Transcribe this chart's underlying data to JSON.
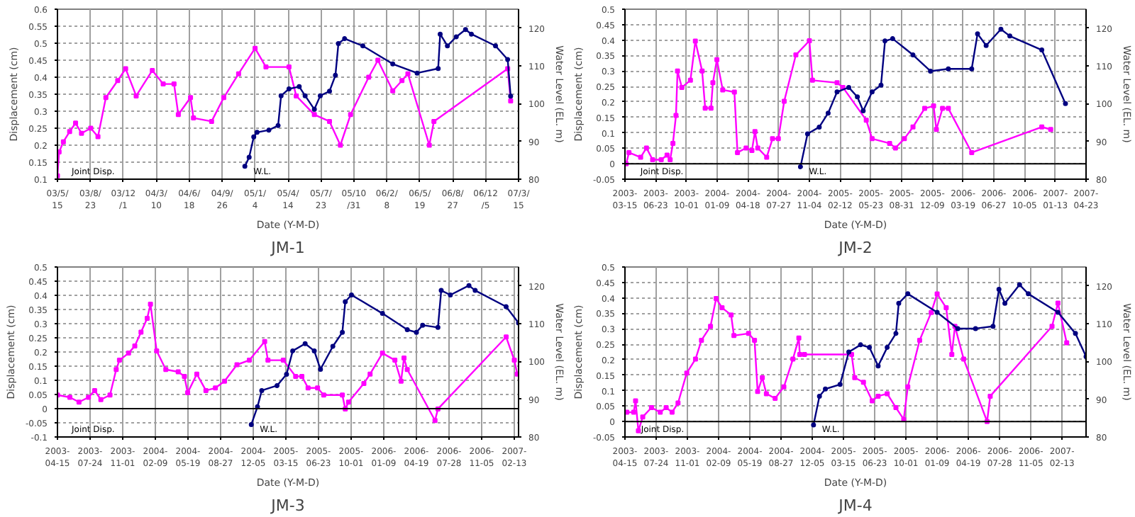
{
  "chart_data": [
    {
      "type": "line",
      "title": "JM-1",
      "xlabel": "Date (Y-M-D)",
      "ylabel": "Displacement (cm)",
      "y2label": "Water Level (EL. m)",
      "grid": true,
      "xlim": [
        "2003-05-15",
        "2007-03-15"
      ],
      "xticks": [
        {
          "value": "2003-05-15",
          "label": "03/5/\n15"
        },
        {
          "value": "2003-08-23",
          "label": "03/8/\n23"
        },
        {
          "value": "2003-12-01",
          "label": "03/12\n/1"
        },
        {
          "value": "2004-03-10",
          "label": "04/3/\n10"
        },
        {
          "value": "2004-06-18",
          "label": "04/6/\n18"
        },
        {
          "value": "2004-09-26",
          "label": "04/9/\n26"
        },
        {
          "value": "2005-01-04",
          "label": "05/1/\n4"
        },
        {
          "value": "2005-04-14",
          "label": "05/4/\n14"
        },
        {
          "value": "2005-07-23",
          "label": "05/7/\n23"
        },
        {
          "value": "2005-10-31",
          "label": "05/10\n/31"
        },
        {
          "value": "2006-02-08",
          "label": "06/2/\n8"
        },
        {
          "value": "2006-05-19",
          "label": "06/5/\n19"
        },
        {
          "value": "2006-08-27",
          "label": "06/8/\n27"
        },
        {
          "value": "2006-12-05",
          "label": "06/12\n/5"
        },
        {
          "value": "2007-03-15",
          "label": "07/3/\n15"
        }
      ],
      "ylim": [
        0.1,
        0.6
      ],
      "yticks": [
        0.1,
        0.15,
        0.2,
        0.25,
        0.3,
        0.35,
        0.4,
        0.45,
        0.5,
        0.55,
        0.6
      ],
      "y2lim": [
        80,
        125
      ],
      "y2ticks": [
        80,
        90,
        100,
        110,
        120
      ],
      "series": [
        {
          "name": "Joint Disp.",
          "color": "#ff00ff",
          "marker": "square",
          "x": [
            "2003-05-15",
            "2003-05-20",
            "2003-06-02",
            "2003-06-21",
            "2003-07-09",
            "2003-07-27",
            "2003-08-24",
            "2003-09-15",
            "2003-10-09",
            "2003-11-14",
            "2003-12-08",
            "2004-01-09",
            "2004-02-27",
            "2004-03-31",
            "2004-05-03",
            "2004-05-16",
            "2004-06-22",
            "2004-07-01",
            "2004-08-25",
            "2004-10-01",
            "2004-11-15",
            "2005-01-04",
            "2005-02-06",
            "2005-04-17",
            "2005-05-09",
            "2005-07-03",
            "2005-08-18",
            "2005-09-20",
            "2005-10-21",
            "2005-12-15",
            "2006-01-12",
            "2006-02-26",
            "2006-03-26",
            "2006-04-13",
            "2006-06-17",
            "2006-07-01",
            "2007-02-10",
            "2007-02-19"
          ],
          "values": [
            0.11,
            0.18,
            0.21,
            0.24,
            0.265,
            0.235,
            0.25,
            0.225,
            0.34,
            0.39,
            0.425,
            0.345,
            0.42,
            0.38,
            0.38,
            0.29,
            0.34,
            0.28,
            0.27,
            0.34,
            0.41,
            0.485,
            0.43,
            0.43,
            0.345,
            0.29,
            0.27,
            0.2,
            0.29,
            0.4,
            0.45,
            0.36,
            0.39,
            0.41,
            0.2,
            0.27,
            0.425,
            0.33
          ]
        },
        {
          "name": "W.L.",
          "color": "#000080",
          "marker": "circle",
          "axis": "y2",
          "x": [
            "2004-12-04",
            "2004-12-17",
            "2004-12-31",
            "2005-01-10",
            "2005-02-15",
            "2005-03-15",
            "2005-03-24",
            "2005-04-17",
            "2005-05-18",
            "2005-06-05",
            "2005-07-03",
            "2005-07-21",
            "2005-08-18",
            "2005-09-05",
            "2005-09-14",
            "2005-10-03",
            "2005-11-27",
            "2006-02-26",
            "2006-05-11",
            "2006-07-14",
            "2006-07-20",
            "2006-08-11",
            "2006-09-07",
            "2006-10-05",
            "2006-10-23",
            "2007-01-04",
            "2007-02-10",
            "2007-02-19"
          ],
          "values": [
            83.4,
            85.8,
            91.2,
            92.4,
            93,
            94.2,
            102.1,
            103.9,
            104.5,
            102.1,
            98.5,
            102.1,
            103.3,
            107.5,
            115.9,
            117.2,
            115.3,
            110.5,
            108.1,
            109.3,
            118.4,
            115.3,
            117.7,
            119.6,
            118.4,
            115.3,
            111.7,
            102
          ]
        }
      ]
    },
    {
      "type": "line",
      "title": "JM-2",
      "xlabel": "Date (Y-M-D)",
      "ylabel": "Displacement (cm)",
      "y2label": "Water Level (EL. m)",
      "grid": true,
      "xlim": [
        "2003-03-15",
        "2007-04-23"
      ],
      "xticks": [
        {
          "value": "2003-03-15",
          "label": "2003-\n03-15"
        },
        {
          "value": "2003-06-23",
          "label": "2003-\n06-23"
        },
        {
          "value": "2003-10-01",
          "label": "2003-\n10-01"
        },
        {
          "value": "2004-01-09",
          "label": "2004-\n01-09"
        },
        {
          "value": "2004-04-18",
          "label": "2004-\n04-18"
        },
        {
          "value": "2004-07-27",
          "label": "2004-\n07-27"
        },
        {
          "value": "2004-11-04",
          "label": "2004-\n11-04"
        },
        {
          "value": "2005-02-12",
          "label": "2005-\n02-12"
        },
        {
          "value": "2005-05-23",
          "label": "2005-\n05-23"
        },
        {
          "value": "2005-08-31",
          "label": "2005-\n08-31"
        },
        {
          "value": "2005-12-09",
          "label": "2005-\n12-09"
        },
        {
          "value": "2006-03-19",
          "label": "2006-\n03-19"
        },
        {
          "value": "2006-06-27",
          "label": "2006-\n06-27"
        },
        {
          "value": "2006-10-05",
          "label": "2006-\n10-05"
        },
        {
          "value": "2007-01-13",
          "label": "2007-\n01-13"
        },
        {
          "value": "2007-04-23",
          "label": "2007-\n04-23"
        }
      ],
      "ylim": [
        -0.05,
        0.5
      ],
      "yticks": [
        -0.05,
        0,
        0.05,
        0.1,
        0.15,
        0.2,
        0.25,
        0.3,
        0.35,
        0.4,
        0.45,
        0.5
      ],
      "y2lim": [
        80,
        125
      ],
      "y2ticks": [
        80,
        90,
        100,
        110,
        120
      ],
      "ref_lines": [
        {
          "axis": "y",
          "value": 0,
          "color": "#000000"
        }
      ],
      "series": [
        {
          "name": "Joint Disp.",
          "color": "#ff00ff",
          "marker": "square",
          "x": [
            "2003-03-19",
            "2003-03-28",
            "2003-05-05",
            "2003-05-24",
            "2003-06-13",
            "2003-07-11",
            "2003-07-30",
            "2003-08-09",
            "2003-08-18",
            "2003-08-28",
            "2003-09-02",
            "2003-09-16",
            "2003-10-14",
            "2003-10-30",
            "2003-11-21",
            "2003-12-01",
            "2003-12-20",
            "2003-12-26",
            "2004-01-08",
            "2004-01-27",
            "2004-03-05",
            "2004-03-15",
            "2004-04-12",
            "2004-05-01",
            "2004-05-11",
            "2004-05-20",
            "2004-06-18",
            "2004-07-07",
            "2004-07-26",
            "2004-08-14",
            "2004-09-21",
            "2004-11-04",
            "2004-11-14",
            "2005-02-02",
            "2005-02-21",
            "2005-05-08",
            "2005-05-27",
            "2005-07-23",
            "2005-08-11",
            "2005-09-09",
            "2005-10-07",
            "2005-11-14",
            "2005-12-13",
            "2005-12-22",
            "2006-01-11",
            "2006-01-30",
            "2006-04-16",
            "2006-11-30",
            "2006-12-29"
          ],
          "values": [
            0.0,
            0.036,
            0.021,
            0.051,
            0.013,
            0.013,
            0.028,
            0.013,
            0.066,
            0.156,
            0.3,
            0.247,
            0.27,
            0.397,
            0.3,
            0.18,
            0.18,
            0.262,
            0.337,
            0.239,
            0.232,
            0.036,
            0.051,
            0.043,
            0.104,
            0.051,
            0.021,
            0.081,
            0.081,
            0.202,
            0.352,
            0.398,
            0.27,
            0.262,
            0.247,
            0.141,
            0.081,
            0.066,
            0.051,
            0.081,
            0.119,
            0.179,
            0.187,
            0.111,
            0.179,
            0.179,
            0.036,
            0.119,
            0.111
          ]
        },
        {
          "name": "W.L.",
          "color": "#000080",
          "marker": "circle",
          "axis": "y2",
          "x": [
            "2004-10-06",
            "2004-10-29",
            "2004-12-06",
            "2005-01-04",
            "2005-02-02",
            "2005-03-12",
            "2005-04-09",
            "2005-04-28",
            "2005-05-27",
            "2005-06-25",
            "2005-07-08",
            "2005-08-02",
            "2005-10-07",
            "2005-12-03",
            "2006-01-30",
            "2006-04-16",
            "2006-05-05",
            "2006-06-02",
            "2006-07-20",
            "2006-08-18",
            "2006-11-30",
            "2007-02-15"
          ],
          "values": [
            83.3,
            92,
            93.8,
            97.5,
            103.1,
            104.3,
            101.8,
            98.1,
            103.1,
            104.9,
            116.6,
            117.2,
            112.9,
            108.6,
            109.2,
            109.2,
            118.5,
            115.4,
            119.7,
            117.9,
            114.2,
            100
          ]
        }
      ]
    },
    {
      "type": "line",
      "title": "JM-3",
      "xlabel": "Date (Y-M-D)",
      "ylabel": "Displacement (cm)",
      "y2label": "Water Level (EL. m)",
      "grid": true,
      "xlim": [
        "2003-04-15",
        "2007-02-26"
      ],
      "xticks": [
        {
          "value": "2003-04-15",
          "label": "2003-\n04-15"
        },
        {
          "value": "2003-07-24",
          "label": "2003-\n07-24"
        },
        {
          "value": "2003-11-01",
          "label": "2003-\n11-01"
        },
        {
          "value": "2004-02-09",
          "label": "2004-\n02-09"
        },
        {
          "value": "2004-05-19",
          "label": "2004-\n05-19"
        },
        {
          "value": "2004-08-27",
          "label": "2004-\n08-27"
        },
        {
          "value": "2004-12-05",
          "label": "2004-\n12-05"
        },
        {
          "value": "2005-03-15",
          "label": "2005-\n03-15"
        },
        {
          "value": "2005-06-23",
          "label": "2005-\n06-23"
        },
        {
          "value": "2005-10-01",
          "label": "2005-\n10-01"
        },
        {
          "value": "2006-01-09",
          "label": "2006-\n01-09"
        },
        {
          "value": "2006-04-19",
          "label": "2006-\n04-19"
        },
        {
          "value": "2006-07-28",
          "label": "2006-\n07-28"
        },
        {
          "value": "2006-11-05",
          "label": "2006-\n11-05"
        },
        {
          "value": "2007-02-13",
          "label": "2007-\n02-13"
        }
      ],
      "ylim": [
        -0.1,
        0.5
      ],
      "yticks": [
        -0.1,
        -0.05,
        0,
        0.05,
        0.1,
        0.15,
        0.2,
        0.25,
        0.3,
        0.35,
        0.4,
        0.45,
        0.5
      ],
      "y2lim": [
        80,
        125
      ],
      "y2ticks": [
        80,
        90,
        100,
        110,
        120
      ],
      "ref_lines": [
        {
          "axis": "y",
          "value": 0,
          "color": "#000000"
        }
      ],
      "series": [
        {
          "name": "Joint Disp.",
          "color": "#ff00ff",
          "marker": "square",
          "x": [
            "2003-04-15",
            "2003-05-23",
            "2003-06-20",
            "2003-07-19",
            "2003-08-07",
            "2003-08-26",
            "2003-09-23",
            "2003-10-12",
            "2003-10-22",
            "2003-11-19",
            "2003-12-08",
            "2003-12-27",
            "2004-01-15",
            "2004-01-25",
            "2004-02-13",
            "2004-03-12",
            "2004-04-19",
            "2004-05-08",
            "2004-05-18",
            "2004-06-15",
            "2004-07-13",
            "2004-08-11",
            "2004-09-08",
            "2004-10-16",
            "2004-11-23",
            "2005-01-09",
            "2005-01-19",
            "2005-03-07",
            "2005-04-14",
            "2005-05-03",
            "2005-05-22",
            "2005-06-20",
            "2005-07-09",
            "2005-09-04",
            "2005-09-13",
            "2005-09-23",
            "2005-11-09",
            "2005-11-28",
            "2006-01-05",
            "2006-02-12",
            "2006-03-03",
            "2006-03-12",
            "2006-03-22",
            "2006-06-15",
            "2006-06-24",
            "2007-01-19",
            "2007-02-13",
            "2007-02-22"
          ],
          "values": [
            0.048,
            0.04,
            0.023,
            0.04,
            0.064,
            0.032,
            0.048,
            0.138,
            0.171,
            0.196,
            0.221,
            0.27,
            0.319,
            0.369,
            0.204,
            0.138,
            0.13,
            0.114,
            0.056,
            0.122,
            0.064,
            0.073,
            0.097,
            0.155,
            0.171,
            0.237,
            0.171,
            0.171,
            0.114,
            0.114,
            0.073,
            0.073,
            0.048,
            0.048,
            -0.001,
            0.023,
            0.089,
            0.122,
            0.196,
            0.171,
            0.097,
            0.179,
            0.138,
            -0.042,
            -0.001,
            0.253,
            0.171,
            0.122
          ]
        },
        {
          "name": "W.L.",
          "color": "#000080",
          "marker": "circle",
          "axis": "y2",
          "x": [
            "2004-11-29",
            "2004-12-18",
            "2004-12-31",
            "2005-02-16",
            "2005-03-17",
            "2005-04-05",
            "2005-05-13",
            "2005-06-10",
            "2005-06-29",
            "2005-08-06",
            "2005-09-04",
            "2005-09-13",
            "2005-10-02",
            "2006-01-05",
            "2006-03-22",
            "2006-04-19",
            "2006-05-08",
            "2006-06-24",
            "2006-07-04",
            "2006-08-01",
            "2006-09-27",
            "2006-10-16",
            "2007-01-19",
            "2007-02-26"
          ],
          "values": [
            83.3,
            88,
            92.3,
            93.6,
            96.6,
            102.8,
            104.7,
            102.8,
            97.9,
            104,
            107.7,
            115.8,
            117.6,
            112.7,
            108.4,
            107.7,
            109.6,
            109,
            118.8,
            117.6,
            120.1,
            118.8,
            114.5,
            110.2
          ]
        }
      ]
    },
    {
      "type": "line",
      "title": "JM-4",
      "xlabel": "Date (Y-M-D)",
      "ylabel": "Displacement (cm)",
      "y2label": "Water Level (EL. m)",
      "grid": true,
      "xlim": [
        "2003-04-15",
        "2007-05-01"
      ],
      "xticks": [
        {
          "value": "2003-04-15",
          "label": "2003-\n04-15"
        },
        {
          "value": "2003-07-24",
          "label": "2003-\n07-24"
        },
        {
          "value": "2003-11-01",
          "label": "2003-\n11-01"
        },
        {
          "value": "2004-02-09",
          "label": "2004-\n02-09"
        },
        {
          "value": "2004-05-19",
          "label": "2004-\n05-19"
        },
        {
          "value": "2004-08-27",
          "label": "2004-\n08-27"
        },
        {
          "value": "2004-12-05",
          "label": "2004-\n12-05"
        },
        {
          "value": "2005-03-15",
          "label": "2005-\n03-15"
        },
        {
          "value": "2005-06-23",
          "label": "2005-\n06-23"
        },
        {
          "value": "2005-10-01",
          "label": "2005-\n10-01"
        },
        {
          "value": "2006-01-09",
          "label": "2006-\n01-09"
        },
        {
          "value": "2006-04-19",
          "label": "2006-\n04-19"
        },
        {
          "value": "2006-07-28",
          "label": "2006-\n07-28"
        },
        {
          "value": "2006-11-05",
          "label": "2006-\n11-05"
        },
        {
          "value": "2007-02-13",
          "label": "2007-\n02-13"
        }
      ],
      "ylim": [
        -0.05,
        0.5
      ],
      "yticks": [
        -0.05,
        0,
        0.05,
        0.1,
        0.15,
        0.2,
        0.25,
        0.3,
        0.35,
        0.4,
        0.45,
        0.5
      ],
      "y2lim": [
        80,
        125
      ],
      "y2ticks": [
        80,
        90,
        100,
        110,
        120
      ],
      "ref_lines": [
        {
          "axis": "y",
          "value": 0,
          "color": "#000000"
        }
      ],
      "series": [
        {
          "name": "Joint Disp.",
          "color": "#ff00ff",
          "marker": "square",
          "x": [
            "2003-04-21",
            "2003-05-13",
            "2003-05-19",
            "2003-05-28",
            "2003-06-11",
            "2003-07-09",
            "2003-08-06",
            "2003-08-25",
            "2003-09-13",
            "2003-10-02",
            "2003-10-30",
            "2003-11-27",
            "2003-12-16",
            "2004-01-14",
            "2004-02-01",
            "2004-02-20",
            "2004-03-20",
            "2004-03-29",
            "2004-05-15",
            "2004-06-03",
            "2004-06-13",
            "2004-06-28",
            "2004-07-11",
            "2004-08-08",
            "2004-09-05",
            "2004-10-04",
            "2004-10-23",
            "2004-10-26",
            "2004-11-10",
            "2005-04-10",
            "2005-04-20",
            "2005-05-18",
            "2005-06-15",
            "2005-07-04",
            "2005-08-02",
            "2005-08-30",
            "2005-09-24",
            "2005-10-07",
            "2005-11-14",
            "2005-12-21",
            "2006-01-09",
            "2006-02-07",
            "2006-02-25",
            "2006-03-07",
            "2006-04-04",
            "2006-06-18",
            "2006-06-28",
            "2007-01-12",
            "2007-01-31",
            "2007-02-28"
          ],
          "values": [
            0.03,
            0.03,
            0.067,
            -0.03,
            0.015,
            0.045,
            0.03,
            0.045,
            0.03,
            0.06,
            0.157,
            0.202,
            0.263,
            0.308,
            0.398,
            0.368,
            0.345,
            0.278,
            0.285,
            0.263,
            0.097,
            0.142,
            0.09,
            0.075,
            0.112,
            0.202,
            0.27,
            0.217,
            0.217,
            0.217,
            0.142,
            0.127,
            0.067,
            0.082,
            0.09,
            0.045,
            0.007,
            0.112,
            0.263,
            0.353,
            0.413,
            0.368,
            0.217,
            0.308,
            0.202,
            0.0,
            0.082,
            0.308,
            0.383,
            0.255
          ]
        },
        {
          "name": "W.L.",
          "color": "#000080",
          "marker": "circle",
          "axis": "y2",
          "x": [
            "2004-12-09",
            "2004-12-28",
            "2005-01-16",
            "2005-03-04",
            "2005-04-01",
            "2005-05-09",
            "2005-06-06",
            "2005-07-04",
            "2005-08-02",
            "2005-08-30",
            "2005-09-08",
            "2005-10-07",
            "2006-01-09",
            "2006-03-16",
            "2006-05-12",
            "2006-07-07",
            "2006-07-26",
            "2006-08-14",
            "2006-09-30",
            "2006-10-28",
            "2007-01-31",
            "2007-03-28",
            "2007-05-01"
          ],
          "values": [
            83.2,
            90.8,
            92.7,
            93.9,
            102.5,
            104.4,
            103.7,
            98.8,
            103.7,
            107.4,
            115.4,
            117.9,
            113,
            108.7,
            108.7,
            109.3,
            119.1,
            115.4,
            120.3,
            117.9,
            113,
            107.4,
            101.3
          ]
        }
      ]
    }
  ]
}
